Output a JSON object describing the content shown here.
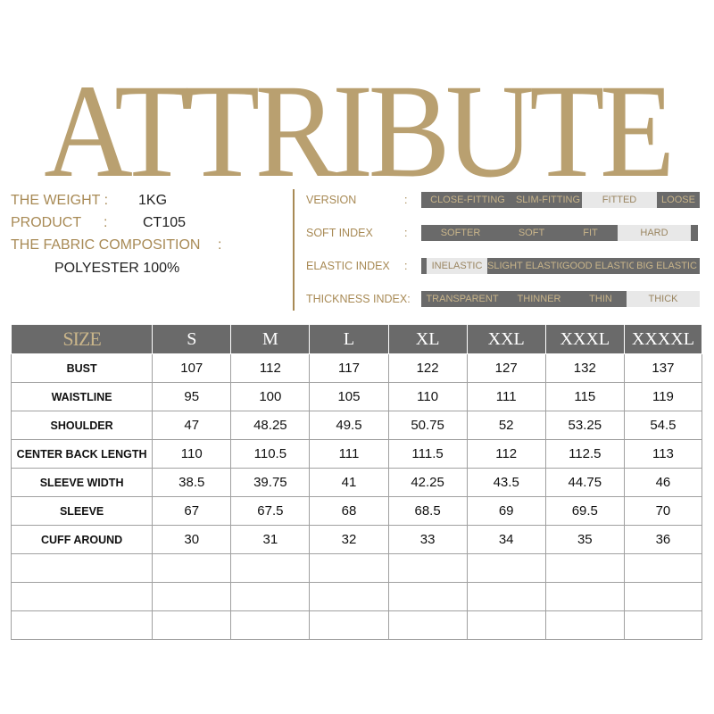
{
  "title": "ATTRIBUTE",
  "info": {
    "weight_label": "THE WEIGHT :",
    "weight_value": "1KG",
    "product_label": "PRODUCT",
    "product_colon": ":",
    "product_value": "CT105",
    "fabric_label": "THE FABRIC COMPOSITION",
    "fabric_colon": ":",
    "fabric_value": "POLYESTER 100%"
  },
  "attributes": [
    {
      "label": "VERSION",
      "colon": ":",
      "segments": [
        "CLOSE-FITTING",
        "SLIM-FITTING",
        "FITTED",
        "LOOSE"
      ],
      "selected": "FITTED"
    },
    {
      "label": "SOFT INDEX",
      "colon": ":",
      "segments": [
        "SOFTER",
        "SOFT",
        "FIT",
        "HARD"
      ],
      "selected": "HARD"
    },
    {
      "label": "ELASTIC INDEX",
      "colon": ":",
      "segments": [
        "INELASTIC",
        "SLIGHT ELASTIC",
        "GOOD ELASTIC",
        "BIG ELASTIC"
      ],
      "selected": "INELASTIC"
    },
    {
      "label": "THICKNESS INDEX:",
      "colon": "",
      "segments": [
        "TRANSPARENT",
        "THINNER",
        "THIN",
        "THICK"
      ],
      "selected": "THICK"
    }
  ],
  "colors": {
    "gold": "#b9a070",
    "dark_gray": "#6a6a6a",
    "light_gray": "#e8e8e8"
  },
  "size_table": {
    "header": [
      "SIZE",
      "S",
      "M",
      "L",
      "XL",
      "XXL",
      "XXXL",
      "XXXXL"
    ],
    "rows": [
      {
        "label": "BUST",
        "values": [
          "107",
          "112",
          "117",
          "122",
          "127",
          "132",
          "137"
        ]
      },
      {
        "label": "WAISTLINE",
        "values": [
          "95",
          "100",
          "105",
          "110",
          "111",
          "115",
          "119"
        ]
      },
      {
        "label": "SHOULDER",
        "values": [
          "47",
          "48.25",
          "49.5",
          "50.75",
          "52",
          "53.25",
          "54.5"
        ]
      },
      {
        "label": "CENTER BACK LENGTH",
        "values": [
          "110",
          "110.5",
          "111",
          "111.5",
          "112",
          "112.5",
          "113"
        ]
      },
      {
        "label": "SLEEVE WIDTH",
        "values": [
          "38.5",
          "39.75",
          "41",
          "42.25",
          "43.5",
          "44.75",
          "46"
        ]
      },
      {
        "label": "SLEEVE",
        "values": [
          "67",
          "67.5",
          "68",
          "68.5",
          "69",
          "69.5",
          "70"
        ]
      },
      {
        "label": "CUFF AROUND",
        "values": [
          "30",
          "31",
          "32",
          "33",
          "34",
          "35",
          "36"
        ]
      }
    ]
  }
}
